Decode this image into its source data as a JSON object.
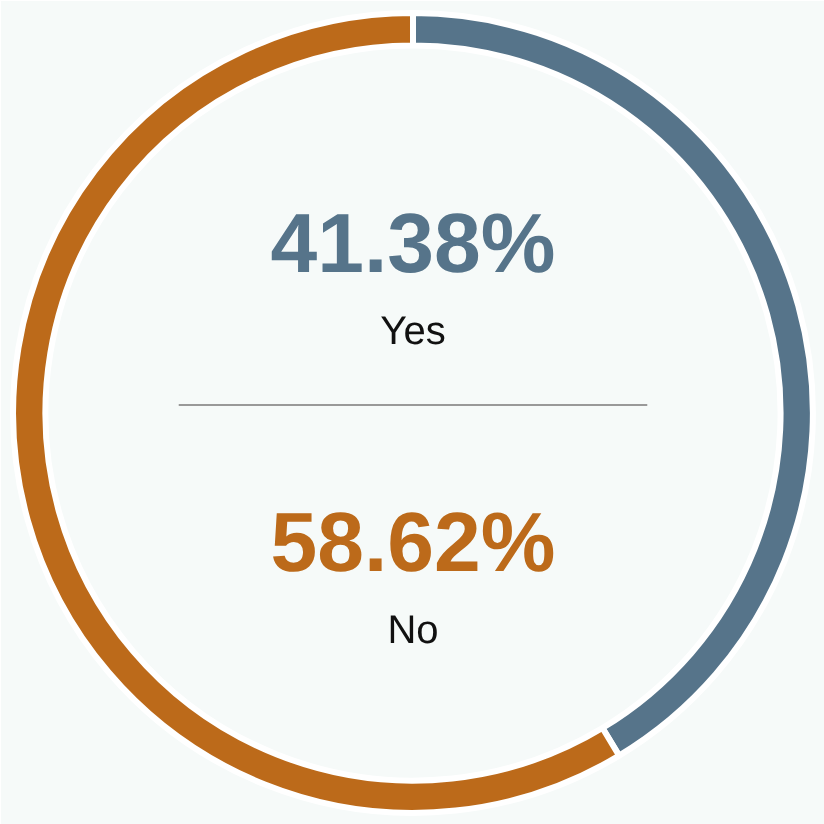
{
  "chart_data": {
    "type": "donut",
    "categories": [
      "Yes",
      "No"
    ],
    "values": [
      41.38,
      58.62
    ],
    "colors": [
      "#56748a",
      "#bc6a1a"
    ],
    "value_labels": [
      "41.38%",
      "58.62%"
    ]
  }
}
